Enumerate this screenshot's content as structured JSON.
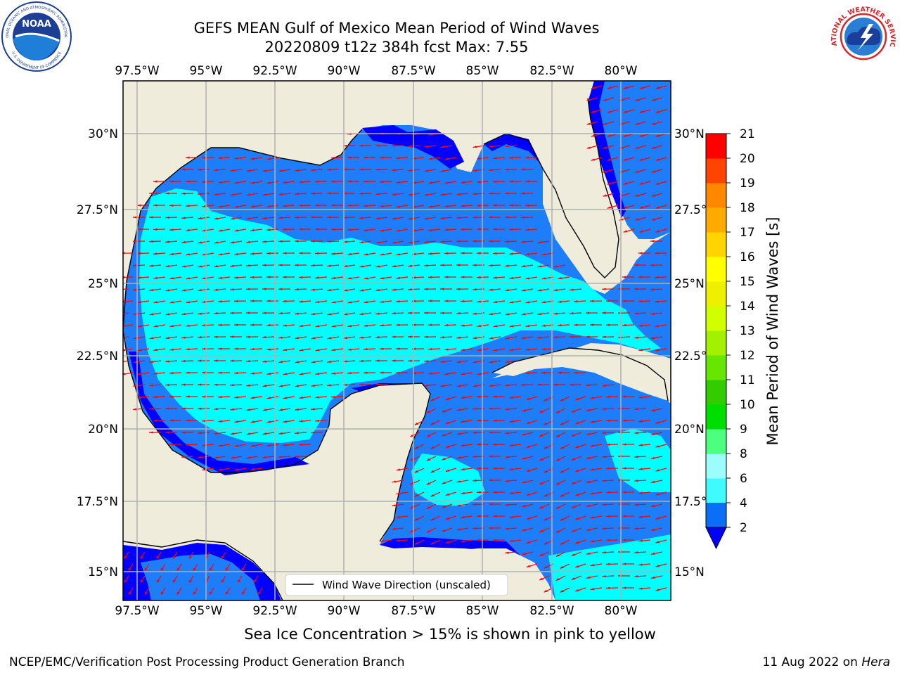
{
  "header": {
    "title_line1": "GEFS MEAN Gulf of Mexico Mean Period of Wind Waves",
    "title_line2": "20220809 t12z 384h fcst   Max: 7.55"
  },
  "logos": {
    "noaa_text": "NOAA",
    "noaa_ring_top": "NATIONAL OCEANIC AND ATMOSPHERIC ADMINISTRATION",
    "noaa_ring_bottom": "U.S. DEPARTMENT OF COMMERCE",
    "nws_ring": "NATIONAL WEATHER SERVICE"
  },
  "map": {
    "lon_labels": [
      "97.5°W",
      "95°W",
      "92.5°W",
      "90°W",
      "87.5°W",
      "85°W",
      "82.5°W",
      "80°W"
    ],
    "lat_labels": [
      "30°N",
      "27.5°N",
      "25°N",
      "22.5°N",
      "20°N",
      "17.5°N",
      "15°N"
    ],
    "legend_label": "Wind Wave Direction (unscaled)",
    "colors": {
      "land": "#efecdc",
      "class_0_2": "#0000ff",
      "class_2_4": "#1e7efa",
      "class_4_6": "#00ffff",
      "arrows": "#ff0000"
    }
  },
  "colorbar": {
    "label": "Mean Period of Wind Waves [s]",
    "ticks": [
      "2",
      "4",
      "6",
      "8",
      "9",
      "10",
      "11",
      "12",
      "13",
      "14",
      "15",
      "16",
      "17",
      "18",
      "19",
      "20",
      "21"
    ],
    "colors": [
      "#0a6ff5",
      "#00f0ff",
      "#3ffaff",
      "#9dfdfd",
      "#4dff7f",
      "#00dd00",
      "#33cc00",
      "#66e600",
      "#a3f000",
      "#d2ff00",
      "#eef000",
      "#ffff00",
      "#ffd400",
      "#ffaa00",
      "#ff8800",
      "#ff4400",
      "#ff0000"
    ],
    "extend_color": "#0000ff"
  },
  "footer": {
    "note": "Sea Ice Concentration > 15% is shown in pink to yellow",
    "credit": "NCEP/EMC/Verification Post Processing Product Generation Branch",
    "date": "11 Aug 2022 on",
    "machine": "Hera"
  }
}
